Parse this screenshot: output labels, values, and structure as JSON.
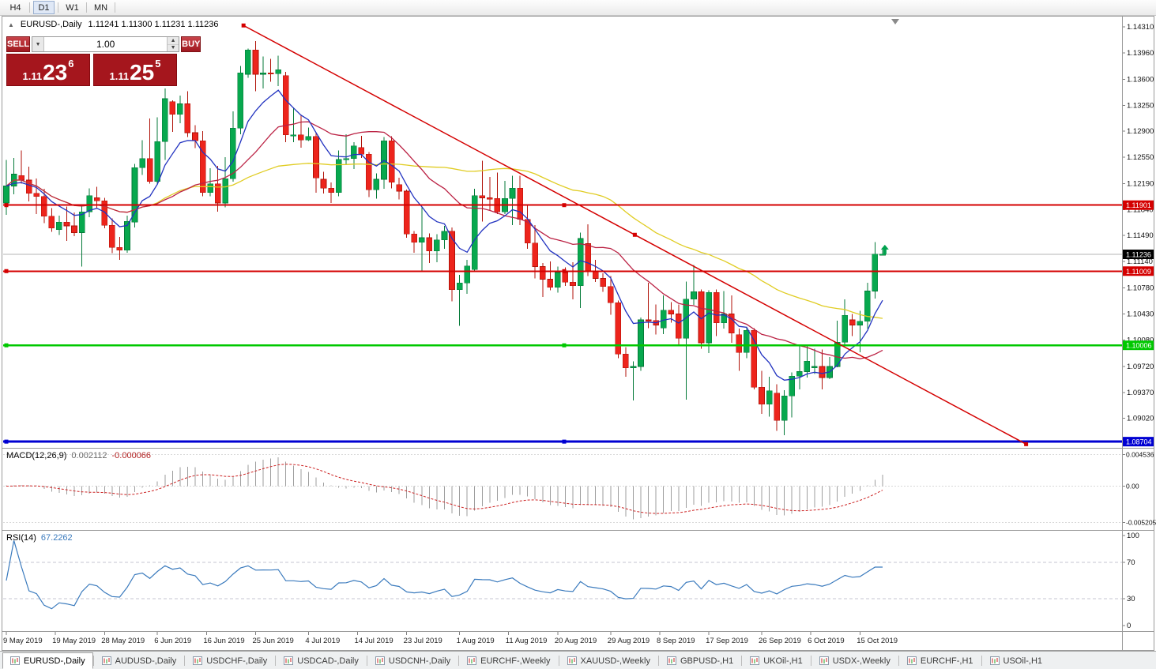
{
  "toolbar": {
    "timeframes": [
      "H4",
      "D1",
      "W1",
      "MN"
    ],
    "active": "D1"
  },
  "window": {
    "title_symbol": "EURUSD-,Daily",
    "title_ohlc": "1.11241 1.11300 1.11231 1.11236"
  },
  "icons": {
    "collapse": "▲",
    "volume_dropdown": "▼",
    "spinner_up": "▲",
    "spinner_down": "▼",
    "chart_shift": "▼",
    "trade_arrow": "↑"
  },
  "one_click": {
    "sell_label": "SELL",
    "buy_label": "BUY",
    "volume": "1.00",
    "sell_price": {
      "big": "1.11",
      "pips": "23",
      "pt": "6"
    },
    "buy_price": {
      "big": "1.11",
      "pips": "25",
      "pt": "5"
    }
  },
  "price_axis": {
    "labels": [
      "1.14310",
      "1.13960",
      "1.13600",
      "1.13250",
      "1.12900",
      "1.12550",
      "1.12190",
      "1.11840",
      "1.11490",
      "1.11140",
      "1.10780",
      "1.10430",
      "1.10080",
      "1.09720",
      "1.09370",
      "1.09020"
    ]
  },
  "current_price": {
    "label": "1.11236",
    "value": 1.11236
  },
  "levels": [
    {
      "label": "1.11901",
      "value": 1.11901,
      "color": "#d40000",
      "width": 2
    },
    {
      "label": "1.11009",
      "value": 1.11009,
      "color": "#d40000",
      "width": 2
    },
    {
      "label": "1.10006",
      "value": 1.10006,
      "color": "#00c800",
      "width": 2.5
    },
    {
      "label": "1.08704",
      "value": 1.08704,
      "color": "#0000d2",
      "width": 3
    }
  ],
  "trendline": {
    "i1": 31.4,
    "p1": 1.1433,
    "i2": 135,
    "p2": 1.0867,
    "color": "#d40000"
  },
  "macd_panel": {
    "name": "MACD(12,26,9)",
    "main_value": "0.002112",
    "signal_value": "-0.000066",
    "scale": [
      "0.004536",
      "0.00",
      "-0.005205"
    ],
    "scale_values": [
      0.004536,
      0,
      -0.005205
    ]
  },
  "rsi_panel": {
    "name": "RSI(14)",
    "value": "67.2262",
    "scale": [
      "100",
      "70",
      "30",
      "0"
    ],
    "scale_values": [
      100,
      70,
      30,
      0
    ],
    "levels": [
      70,
      30
    ]
  },
  "date_axis": [
    {
      "label": "9 May 2019",
      "i": 0
    },
    {
      "label": "19 May 2019",
      "i": 6.5
    },
    {
      "label": "28 May 2019",
      "i": 13
    },
    {
      "label": "6 Jun 2019",
      "i": 20
    },
    {
      "label": "16 Jun 2019",
      "i": 26.5
    },
    {
      "label": "25 Jun 2019",
      "i": 33
    },
    {
      "label": "4 Jul 2019",
      "i": 40
    },
    {
      "label": "14 Jul 2019",
      "i": 46.5
    },
    {
      "label": "23 Jul 2019",
      "i": 53
    },
    {
      "label": "1 Aug 2019",
      "i": 60
    },
    {
      "label": "11 Aug 2019",
      "i": 66.5
    },
    {
      "label": "20 Aug 2019",
      "i": 73
    },
    {
      "label": "29 Aug 2019",
      "i": 80
    },
    {
      "label": "8 Sep 2019",
      "i": 86.5
    },
    {
      "label": "17 Sep 2019",
      "i": 93
    },
    {
      "label": "26 Sep 2019",
      "i": 100
    },
    {
      "label": "6 Oct 2019",
      "i": 106.5
    },
    {
      "label": "15 Oct 2019",
      "i": 113
    }
  ],
  "tabs": [
    {
      "label": "EURUSD-,Daily",
      "active": true
    },
    {
      "label": "AUDUSD-,Daily",
      "active": false
    },
    {
      "label": "USDCHF-,Daily",
      "active": false
    },
    {
      "label": "USDCAD-,Daily",
      "active": false
    },
    {
      "label": "USDCNH-,Daily",
      "active": false
    },
    {
      "label": "EURCHF-,Weekly",
      "active": false
    },
    {
      "label": "XAUUSD-,Weekly",
      "active": false
    },
    {
      "label": "GBPUSD-,H1",
      "active": false
    },
    {
      "label": "UKOil-,H1",
      "active": false
    },
    {
      "label": "USDX-,Weekly",
      "active": false
    },
    {
      "label": "EURCHF-,H1",
      "active": false
    },
    {
      "label": "USOil-,H1",
      "active": false
    }
  ],
  "colors": {
    "candle_up": "#07a84e",
    "candle_up_border": "#047a38",
    "candle_down": "#ed241c",
    "candle_down_border": "#b01208",
    "panel_red": "#a5161d",
    "button_red": "#b5242b",
    "macd_histogram": "#9e9e9e",
    "macd_signal": "#cc2222",
    "rsi_line": "#3a7abd"
  },
  "chart_data": {
    "type": "candlestick",
    "symbol": "EURUSD-",
    "timeframe": "Daily",
    "price_top": 1.1445,
    "price_bottom": 1.0862,
    "ohlc": [
      [
        1.1193,
        1.1251,
        1.1177,
        1.1216
      ],
      [
        1.1216,
        1.1254,
        1.1205,
        1.1232
      ],
      [
        1.123,
        1.1264,
        1.1219,
        1.1224
      ],
      [
        1.1224,
        1.1242,
        1.1195,
        1.1206
      ],
      [
        1.1206,
        1.1226,
        1.1178,
        1.1202
      ],
      [
        1.1202,
        1.1212,
        1.1166,
        1.1175
      ],
      [
        1.1175,
        1.1186,
        1.1154,
        1.1159
      ],
      [
        1.1157,
        1.1176,
        1.115,
        1.1167
      ],
      [
        1.1167,
        1.1188,
        1.1142,
        1.1162
      ],
      [
        1.1162,
        1.118,
        1.1148,
        1.1153
      ],
      [
        1.1153,
        1.1188,
        1.1107,
        1.1181
      ],
      [
        1.1181,
        1.1213,
        1.1174,
        1.1203
      ],
      [
        1.12,
        1.1215,
        1.1185,
        1.1196
      ],
      [
        1.1196,
        1.12,
        1.1159,
        1.1163
      ],
      [
        1.1163,
        1.1172,
        1.1125,
        1.1133
      ],
      [
        1.1133,
        1.1147,
        1.1116,
        1.1129
      ],
      [
        1.1129,
        1.1176,
        1.1126,
        1.1168
      ],
      [
        1.1167,
        1.1246,
        1.116,
        1.1241
      ],
      [
        1.1241,
        1.1278,
        1.1231,
        1.1253
      ],
      [
        1.1253,
        1.1307,
        1.1219,
        1.1222
      ],
      [
        1.1222,
        1.1309,
        1.1219,
        1.1276
      ],
      [
        1.1276,
        1.1348,
        1.1251,
        1.1334
      ],
      [
        1.133,
        1.1332,
        1.1289,
        1.1313
      ],
      [
        1.1313,
        1.1338,
        1.1301,
        1.1327
      ],
      [
        1.1327,
        1.1344,
        1.1282,
        1.1288
      ],
      [
        1.1288,
        1.1298,
        1.1267,
        1.1277
      ],
      [
        1.1277,
        1.129,
        1.1202,
        1.1207
      ],
      [
        1.1207,
        1.124,
        1.1202,
        1.1219
      ],
      [
        1.1219,
        1.1243,
        1.1181,
        1.1193
      ],
      [
        1.1193,
        1.1255,
        1.1187,
        1.1226
      ],
      [
        1.1226,
        1.1317,
        1.1222,
        1.1294
      ],
      [
        1.1294,
        1.1378,
        1.1286,
        1.1369
      ],
      [
        1.1367,
        1.1402,
        1.1362,
        1.14
      ],
      [
        1.14,
        1.1412,
        1.1344,
        1.1367
      ],
      [
        1.1367,
        1.1391,
        1.1348,
        1.1369
      ],
      [
        1.1369,
        1.1388,
        1.1357,
        1.1368
      ],
      [
        1.1368,
        1.1392,
        1.1351,
        1.1373
      ],
      [
        1.1365,
        1.137,
        1.1275,
        1.1285
      ],
      [
        1.1285,
        1.1322,
        1.1275,
        1.1285
      ],
      [
        1.1285,
        1.1312,
        1.1268,
        1.1278
      ],
      [
        1.1278,
        1.1295,
        1.1277,
        1.1283
      ],
      [
        1.1283,
        1.1288,
        1.1207,
        1.1227
      ],
      [
        1.1225,
        1.1235,
        1.1206,
        1.1213
      ],
      [
        1.1213,
        1.1221,
        1.1193,
        1.1207
      ],
      [
        1.1207,
        1.1264,
        1.1202,
        1.1252
      ],
      [
        1.1252,
        1.1286,
        1.1245,
        1.1253
      ],
      [
        1.1253,
        1.1275,
        1.1239,
        1.127
      ],
      [
        1.1268,
        1.1284,
        1.1254,
        1.1259
      ],
      [
        1.1259,
        1.1262,
        1.1201,
        1.1211
      ],
      [
        1.1211,
        1.1233,
        1.1199,
        1.1225
      ],
      [
        1.1225,
        1.1282,
        1.1212,
        1.1277
      ],
      [
        1.1277,
        1.1283,
        1.1213,
        1.1221
      ],
      [
        1.1218,
        1.1227,
        1.1198,
        1.1209
      ],
      [
        1.1209,
        1.1211,
        1.1146,
        1.1151
      ],
      [
        1.1151,
        1.1155,
        1.1126,
        1.114
      ],
      [
        1.114,
        1.1187,
        1.1101,
        1.1146
      ],
      [
        1.1146,
        1.1152,
        1.1112,
        1.1128
      ],
      [
        1.1128,
        1.1151,
        1.1113,
        1.1143
      ],
      [
        1.1143,
        1.1162,
        1.1131,
        1.1155
      ],
      [
        1.1155,
        1.116,
        1.106,
        1.1076
      ],
      [
        1.1076,
        1.1096,
        1.1027,
        1.1085
      ],
      [
        1.1085,
        1.1116,
        1.107,
        1.1108
      ],
      [
        1.1103,
        1.1212,
        1.1101,
        1.1203
      ],
      [
        1.1203,
        1.125,
        1.1168,
        1.12
      ],
      [
        1.12,
        1.1228,
        1.1183,
        1.1199
      ],
      [
        1.1199,
        1.1234,
        1.1178,
        1.1181
      ],
      [
        1.1181,
        1.1223,
        1.1178,
        1.1199
      ],
      [
        1.1199,
        1.123,
        1.1163,
        1.1213
      ],
      [
        1.1213,
        1.123,
        1.1163,
        1.1171
      ],
      [
        1.1171,
        1.1191,
        1.1131,
        1.1139
      ],
      [
        1.1139,
        1.1163,
        1.1091,
        1.1107
      ],
      [
        1.1107,
        1.1112,
        1.1066,
        1.109
      ],
      [
        1.109,
        1.1114,
        1.1075,
        1.1079
      ],
      [
        1.1079,
        1.1107,
        1.1072,
        1.1099
      ],
      [
        1.1099,
        1.1106,
        1.1081,
        1.1086
      ],
      [
        1.1086,
        1.1113,
        1.1063,
        1.1081
      ],
      [
        1.1081,
        1.1153,
        1.1051,
        1.1145
      ],
      [
        1.1138,
        1.1164,
        1.1094,
        1.1101
      ],
      [
        1.1101,
        1.1116,
        1.1086,
        1.1091
      ],
      [
        1.1091,
        1.1098,
        1.1073,
        1.108
      ],
      [
        1.108,
        1.1094,
        1.1042,
        1.1058
      ],
      [
        1.1058,
        1.1061,
        1.0983,
        1.0989
      ],
      [
        1.0989,
        1.0998,
        1.0958,
        1.097
      ],
      [
        1.097,
        1.0979,
        1.0926,
        1.0972
      ],
      [
        1.0972,
        1.1038,
        1.0966,
        1.1035
      ],
      [
        1.1035,
        1.1085,
        1.1024,
        1.1034
      ],
      [
        1.1034,
        1.1056,
        1.1015,
        1.1028
      ],
      [
        1.1024,
        1.1068,
        1.1016,
        1.1048
      ],
      [
        1.1048,
        1.1059,
        1.1031,
        1.1043
      ],
      [
        1.1043,
        1.1056,
        1.0999,
        1.101
      ],
      [
        1.101,
        1.1087,
        1.0927,
        1.1063
      ],
      [
        1.1063,
        1.1109,
        1.1055,
        1.1073
      ],
      [
        1.1073,
        1.1076,
        1.0996,
        1.1004
      ],
      [
        1.1004,
        1.1075,
        1.099,
        1.1072
      ],
      [
        1.1072,
        1.1076,
        1.1013,
        1.1031
      ],
      [
        1.1031,
        1.1074,
        1.1023,
        1.1043
      ],
      [
        1.1043,
        1.1068,
        1.1004,
        1.1017
      ],
      [
        1.1015,
        1.1023,
        1.0966,
        1.0991
      ],
      [
        1.0991,
        1.1025,
        1.0983,
        1.1021
      ],
      [
        1.1021,
        1.1024,
        1.0941,
        1.0944
      ],
      [
        1.0944,
        1.0966,
        1.0908,
        1.0921
      ],
      [
        1.0921,
        1.0958,
        1.0904,
        1.0939
      ],
      [
        1.0936,
        1.0948,
        1.0885,
        1.0899
      ],
      [
        1.0899,
        1.094,
        1.0879,
        1.0932
      ],
      [
        1.0932,
        1.0964,
        1.0903,
        1.0959
      ],
      [
        1.0959,
        1.0999,
        1.0941,
        1.0965
      ],
      [
        1.0965,
        1.0999,
        1.0957,
        1.0979
      ],
      [
        1.0972,
        1.0996,
        1.0962,
        1.0972
      ],
      [
        1.0972,
        1.0995,
        1.0941,
        1.0957
      ],
      [
        1.0957,
        1.0985,
        1.0955,
        1.0972
      ],
      [
        1.0972,
        1.1034,
        1.0971,
        1.1005
      ],
      [
        1.1005,
        1.1063,
        1.1002,
        1.1041
      ],
      [
        1.1035,
        1.1043,
        1.1013,
        1.1028
      ],
      [
        1.1028,
        1.1047,
        1.0991,
        1.1033
      ],
      [
        1.1033,
        1.1085,
        1.1023,
        1.1074
      ],
      [
        1.1074,
        1.114,
        1.1064,
        1.1124
      ],
      [
        1.1124,
        1.113,
        1.1123,
        1.1124
      ]
    ],
    "moving_averages": [
      {
        "type": "ema",
        "period": 8,
        "color": "#2233c0"
      },
      {
        "type": "sma",
        "period": 20,
        "color": "#bb2244"
      },
      {
        "type": "sma",
        "period": 50,
        "color": "#e0cc22"
      }
    ],
    "marker": {
      "i": 116.3,
      "price": 1.1127,
      "color": "#00a24e"
    }
  }
}
